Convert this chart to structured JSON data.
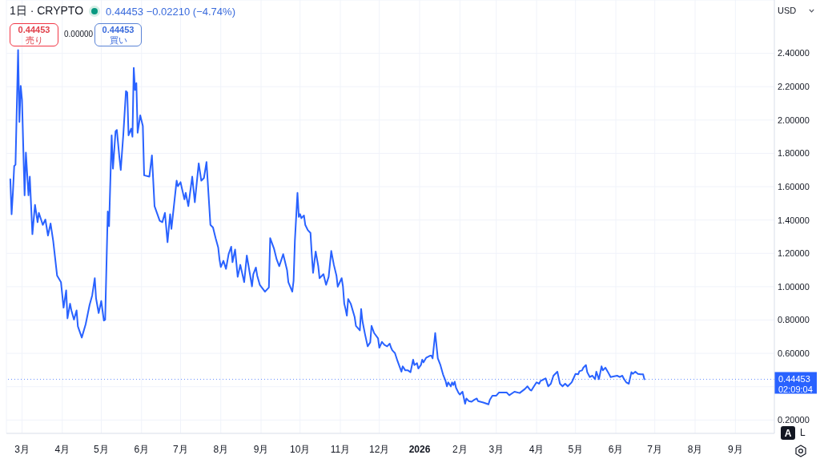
{
  "chart_data": {
    "type": "line",
    "title": "1日 · CRYPTO",
    "annotations": [
      "0.44453 −0.02210 (−4.74%)",
      "0.44453",
      "売り",
      "0.00000",
      "0.44453",
      "買い",
      "USD",
      "02:09:04",
      "A",
      "L"
    ],
    "x": [
      "2025-02-20",
      "2025-02-21",
      "2025-02-22",
      "2025-02-23",
      "2025-02-24",
      "2025-02-26",
      "2025-02-27",
      "2025-02-28",
      "2025-03-01",
      "2025-03-03",
      "2025-03-04",
      "2025-03-06",
      "2025-03-07",
      "2025-03-09",
      "2025-03-11",
      "2025-03-13",
      "2025-03-14",
      "2025-03-17",
      "2025-03-19",
      "2025-03-21",
      "2025-03-23",
      "2025-03-25",
      "2025-03-28",
      "2025-03-31",
      "2025-04-02",
      "2025-04-04",
      "2025-04-05",
      "2025-04-07",
      "2025-04-08",
      "2025-04-10",
      "2025-04-12",
      "2025-04-13",
      "2025-04-16",
      "2025-04-19",
      "2025-04-22",
      "2025-04-24",
      "2025-04-26",
      "2025-04-27",
      "2025-04-29",
      "2025-05-01",
      "2025-05-03",
      "2025-05-04",
      "2025-05-06",
      "2025-05-07",
      "2025-05-09",
      "2025-05-10",
      "2025-05-12",
      "2025-05-13",
      "2025-05-15",
      "2025-05-16",
      "2025-05-18",
      "2025-05-20",
      "2025-05-21",
      "2025-05-22",
      "2025-05-24",
      "2025-05-25",
      "2025-05-26",
      "2025-05-27",
      "2025-05-28",
      "2025-05-29",
      "2025-05-31",
      "2025-06-02",
      "2025-06-03",
      "2025-06-07",
      "2025-06-09",
      "2025-06-11",
      "2025-06-15",
      "2025-06-17",
      "2025-06-19",
      "2025-06-21",
      "2025-06-23",
      "2025-06-24",
      "2025-06-28",
      "2025-06-29",
      "2025-07-01",
      "2025-07-04",
      "2025-07-05",
      "2025-07-07",
      "2025-07-10",
      "2025-07-12",
      "2025-07-15",
      "2025-07-17",
      "2025-07-19",
      "2025-07-21",
      "2025-07-24",
      "2025-07-26",
      "2025-07-28",
      "2025-07-30",
      "2025-07-31",
      "2025-08-01",
      "2025-08-03",
      "2025-08-05",
      "2025-08-07",
      "2025-08-09",
      "2025-08-10",
      "2025-08-12",
      "2025-08-14",
      "2025-08-16",
      "2025-08-19",
      "2025-08-21",
      "2025-08-25",
      "2025-08-26",
      "2025-08-28",
      "2025-08-29",
      "2025-08-31",
      "2025-09-04",
      "2025-09-07",
      "2025-09-08",
      "2025-09-11",
      "2025-09-13",
      "2025-09-15",
      "2025-09-18",
      "2025-09-21",
      "2025-09-22",
      "2025-09-25",
      "2025-09-26",
      "2025-09-27",
      "2025-09-29",
      "2025-09-30",
      "2025-10-01",
      "2025-10-02",
      "2025-10-04",
      "2025-10-05",
      "2025-10-07",
      "2025-10-09",
      "2025-10-10",
      "2025-10-11",
      "2025-10-13",
      "2025-10-15",
      "2025-10-16",
      "2025-10-19",
      "2025-10-21",
      "2025-10-23",
      "2025-10-25",
      "2025-10-27",
      "2025-10-29",
      "2025-10-30",
      "2025-11-02",
      "2025-11-03",
      "2025-11-04",
      "2025-11-05",
      "2025-11-06",
      "2025-11-07",
      "2025-11-09",
      "2025-11-12",
      "2025-11-13",
      "2025-11-16",
      "2025-11-17",
      "2025-11-18",
      "2025-11-20",
      "2025-11-22",
      "2025-11-24",
      "2025-11-25",
      "2025-11-27",
      "2025-11-30",
      "2025-12-01",
      "2025-12-03",
      "2025-12-05",
      "2025-12-07",
      "2025-12-09",
      "2025-12-10",
      "2025-12-11",
      "2025-12-13",
      "2025-12-15",
      "2025-12-18",
      "2025-12-19",
      "2025-12-21",
      "2025-12-23",
      "2025-12-25",
      "2025-12-27",
      "2025-12-28",
      "2025-12-30",
      "2025-12-31",
      "2026-01-02",
      "2026-01-03",
      "2026-01-04",
      "2026-01-06",
      "2026-01-09",
      "2026-01-10",
      "2026-01-11",
      "2026-01-13",
      "2026-01-15",
      "2026-01-17",
      "2026-01-19",
      "2026-01-21",
      "2026-01-22",
      "2026-01-23",
      "2026-01-25",
      "2026-01-26",
      "2026-01-27",
      "2026-01-28",
      "2026-01-29",
      "2026-01-31",
      "2026-02-01",
      "2026-02-03",
      "2026-02-05",
      "2026-02-06",
      "2026-02-08",
      "2026-02-10",
      "2026-02-12",
      "2026-02-14",
      "2026-02-15",
      "2026-02-19",
      "2026-02-23",
      "2026-02-24",
      "2026-02-26",
      "2026-03-01",
      "2026-03-03",
      "2026-03-07",
      "2026-03-09",
      "2026-03-11",
      "2026-03-15",
      "2026-03-19",
      "2026-03-23",
      "2026-03-25",
      "2026-03-27",
      "2026-03-28",
      "2026-03-30",
      "2026-04-01",
      "2026-04-03",
      "2026-04-04",
      "2026-04-06",
      "2026-04-08",
      "2026-04-10",
      "2026-04-12",
      "2026-04-14",
      "2026-04-17",
      "2026-04-19",
      "2026-04-21",
      "2026-04-23",
      "2026-04-25",
      "2026-04-28",
      "2026-04-29",
      "2026-05-01",
      "2026-05-03",
      "2026-05-04",
      "2026-05-06",
      "2026-05-07",
      "2026-05-09",
      "2026-05-10",
      "2026-05-12",
      "2026-05-14",
      "2026-05-16",
      "2026-05-17",
      "2026-05-19",
      "2026-05-21",
      "2026-05-22",
      "2026-05-24",
      "2026-05-26",
      "2026-05-28",
      "2026-05-30",
      "2026-06-02",
      "2026-06-04",
      "2026-06-06",
      "2026-06-07",
      "2026-06-09",
      "2026-06-11",
      "2026-06-13",
      "2026-06-14",
      "2026-06-16",
      "2026-06-18",
      "2026-06-20",
      "2026-06-22",
      "2026-06-23"
    ],
    "series": [
      {
        "color": "#2962ff",
        "values": [
          1.645,
          1.435,
          1.563,
          1.724,
          1.732,
          2.42,
          1.988,
          2.204,
          2.124,
          1.548,
          1.804,
          1.548,
          1.66,
          1.315,
          1.491,
          1.387,
          1.443,
          1.371,
          1.403,
          1.307,
          1.379,
          1.275,
          1.067,
          1.027,
          0.874,
          0.978,
          0.81,
          0.898,
          0.858,
          0.802,
          0.858,
          0.762,
          0.695,
          0.775,
          0.89,
          0.947,
          1.051,
          0.93,
          0.842,
          0.914,
          0.797,
          0.802,
          1.451,
          1.363,
          1.908,
          1.708,
          1.932,
          1.94,
          1.772,
          1.7,
          1.916,
          2.173,
          2.165,
          1.908,
          1.948,
          1.9,
          2.313,
          2.18,
          2.221,
          1.924,
          2.028,
          1.964,
          1.668,
          1.66,
          1.788,
          1.483,
          1.395,
          1.387,
          1.443,
          1.267,
          1.435,
          1.347,
          1.636,
          1.603,
          1.627,
          1.524,
          1.563,
          1.483,
          1.66,
          1.507,
          1.74,
          1.636,
          1.652,
          1.748,
          1.371,
          1.355,
          1.291,
          1.235,
          1.163,
          1.118,
          1.155,
          1.107,
          1.195,
          1.24,
          1.147,
          1.223,
          1.059,
          1.131,
          1.027,
          1.187,
          1.002,
          1.075,
          1.115,
          1.067,
          1.011,
          0.97,
          0.995,
          1.291,
          1.227,
          1.163,
          1.123,
          1.195,
          1.099,
          1.027,
          0.97,
          1.035,
          1.275,
          1.563,
          1.419,
          1.435,
          1.411,
          1.427,
          1.371,
          1.339,
          1.323,
          1.195,
          1.083,
          1.211,
          1.123,
          1.051,
          1.075,
          1.011,
          1.059,
          1.214,
          1.131,
          1.067,
          1.0,
          1.051,
          1.002,
          0.898,
          0.866,
          0.826,
          0.926,
          0.898,
          0.818,
          0.765,
          0.738,
          0.866,
          0.794,
          0.714,
          0.642,
          0.666,
          0.765,
          0.722,
          0.69,
          0.634,
          0.669,
          0.65,
          0.642,
          0.658,
          0.634,
          0.618,
          0.602,
          0.554,
          0.49,
          0.522,
          0.498,
          0.498,
          0.487,
          0.562,
          0.53,
          0.541,
          0.509,
          0.53,
          0.562,
          0.546,
          0.573,
          0.586,
          0.586,
          0.57,
          0.722,
          0.57,
          0.53,
          0.474,
          0.434,
          0.402,
          0.426,
          0.402,
          0.426,
          0.41,
          0.43,
          0.394,
          0.362,
          0.353,
          0.37,
          0.298,
          0.329,
          0.313,
          0.31,
          0.321,
          0.329,
          0.313,
          0.305,
          0.294,
          0.321,
          0.346,
          0.346,
          0.365,
          0.365,
          0.365,
          0.349,
          0.37,
          0.362,
          0.386,
          0.402,
          0.381,
          0.377,
          0.402,
          0.426,
          0.418,
          0.434,
          0.442,
          0.45,
          0.402,
          0.418,
          0.466,
          0.49,
          0.418,
          0.402,
          0.418,
          0.402,
          0.426,
          0.442,
          0.477,
          0.474,
          0.493,
          0.498,
          0.514,
          0.53,
          0.487,
          0.458,
          0.466,
          0.445,
          0.49,
          0.445,
          0.522,
          0.498,
          0.514,
          0.487,
          0.458,
          0.461,
          0.466,
          0.458,
          0.466,
          0.45,
          0.426,
          0.418,
          0.487,
          0.477,
          0.49,
          0.477,
          0.474,
          0.474,
          0.44453
        ]
      }
    ],
    "xlim": [
      "2025-02-17",
      "2026-10-01"
    ],
    "xticks": [
      {
        "value": "2025-03-01",
        "label": "3月"
      },
      {
        "value": "2025-04-01",
        "label": "4月"
      },
      {
        "value": "2025-05-01",
        "label": "5月"
      },
      {
        "value": "2025-06-01",
        "label": "6月"
      },
      {
        "value": "2025-07-01",
        "label": "7月"
      },
      {
        "value": "2025-08-01",
        "label": "8月"
      },
      {
        "value": "2025-09-01",
        "label": "9月"
      },
      {
        "value": "2025-10-01",
        "label": "10月"
      },
      {
        "value": "2025-11-01",
        "label": "11月"
      },
      {
        "value": "2025-12-01",
        "label": "12月"
      },
      {
        "value": "2026-01-01",
        "label": "2026"
      },
      {
        "value": "2026-02-01",
        "label": "2月"
      },
      {
        "value": "2026-03-01",
        "label": "3月"
      },
      {
        "value": "2026-04-01",
        "label": "4月"
      },
      {
        "value": "2026-05-01",
        "label": "5月"
      },
      {
        "value": "2026-06-01",
        "label": "6月"
      },
      {
        "value": "2026-07-01",
        "label": "7月"
      },
      {
        "value": "2026-08-01",
        "label": "8月"
      },
      {
        "value": "2026-09-01",
        "label": "9月"
      }
    ],
    "ylim": [
      0.12,
      2.72
    ],
    "yticks": [
      {
        "value": 0.2,
        "label": "0.20000"
      },
      {
        "value": 0.4,
        "label": null
      },
      {
        "value": 0.6,
        "label": "0.60000"
      },
      {
        "value": 0.8,
        "label": "0.80000"
      },
      {
        "value": 1.0,
        "label": "1.00000"
      },
      {
        "value": 1.2,
        "label": "1.20000"
      },
      {
        "value": 1.4,
        "label": "1.40000"
      },
      {
        "value": 1.6,
        "label": "1.60000"
      },
      {
        "value": 1.8,
        "label": "1.80000"
      },
      {
        "value": 2.0,
        "label": "2.00000"
      },
      {
        "value": 2.2,
        "label": "2.20000"
      },
      {
        "value": 2.4,
        "label": "2.40000"
      }
    ],
    "grid": true,
    "ref_lines": [
      {
        "axis": "y",
        "value": 0.44453,
        "label": "0.44453",
        "color": "#2962ff",
        "line_style": "dotted"
      }
    ]
  }
}
